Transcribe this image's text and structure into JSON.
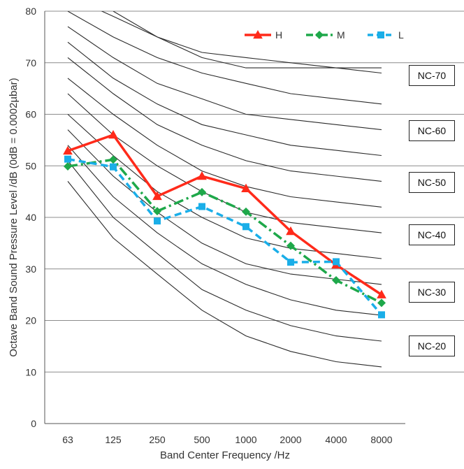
{
  "chart_data": {
    "type": "line",
    "xlabel": "Band Center Frequency /Hz",
    "ylabel": "Octave Band Sound Pressure Level /dB (0dB = 0.0002µbar)",
    "categories": [
      "63",
      "125",
      "250",
      "500",
      "1000",
      "2000",
      "4000",
      "8000"
    ],
    "ylim": [
      0,
      80
    ],
    "yticks": [
      0,
      10,
      20,
      30,
      40,
      50,
      60,
      70,
      80
    ],
    "grid": true,
    "legend_position": "top-right",
    "series": [
      {
        "name": "H",
        "color": "#ff2a1a",
        "marker": "triangle",
        "dash": "solid",
        "values": [
          52.9,
          56.0,
          44.1,
          48.0,
          45.6,
          37.3,
          30.8,
          25.0
        ]
      },
      {
        "name": "M",
        "color": "#1ea84a",
        "marker": "diamond",
        "dash": "dashdot",
        "values": [
          49.9,
          51.2,
          41.2,
          44.9,
          41.1,
          34.5,
          27.8,
          23.4
        ]
      },
      {
        "name": "L",
        "color": "#1aaee8",
        "marker": "square",
        "dash": "dashed",
        "values": [
          51.3,
          49.8,
          39.3,
          42.1,
          38.2,
          31.3,
          31.4,
          21.1
        ]
      }
    ],
    "nc_curves": [
      {
        "label": "NC-20",
        "values": [
          51,
          40,
          33,
          26,
          22,
          19,
          17,
          16
        ]
      },
      {
        "label": "",
        "values": [
          54,
          44,
          37,
          31,
          27,
          24,
          22,
          21
        ]
      },
      {
        "label": "NC-30",
        "values": [
          57,
          48,
          41,
          35,
          31,
          29,
          28,
          27
        ]
      },
      {
        "label": "",
        "values": [
          60,
          52,
          45,
          40,
          36,
          34,
          33,
          32
        ]
      },
      {
        "label": "NC-40",
        "values": [
          64,
          56,
          50,
          45,
          41,
          39,
          38,
          37
        ]
      },
      {
        "label": "",
        "values": [
          67,
          60,
          54,
          49,
          46,
          44,
          43,
          42
        ]
      },
      {
        "label": "NC-50",
        "values": [
          71,
          64,
          58,
          54,
          51,
          49,
          48,
          47
        ]
      },
      {
        "label": "",
        "values": [
          74,
          67,
          62,
          58,
          56,
          54,
          53,
          52
        ]
      },
      {
        "label": "NC-60",
        "values": [
          77,
          71,
          66,
          63,
          60,
          59,
          58,
          57
        ]
      },
      {
        "label": "",
        "values": [
          80,
          75,
          71,
          68,
          66,
          64,
          63,
          62
        ]
      },
      {
        "label": "NC-70",
        "values": [
          83,
          79,
          75,
          72,
          71,
          70,
          69,
          68
        ]
      },
      {
        "label": "",
        "values": [
          null,
          80,
          75,
          71,
          69,
          69,
          69,
          69
        ]
      }
    ],
    "extra_curves": [
      {
        "values": [
          47,
          36,
          29,
          22,
          17,
          14,
          12,
          11
        ]
      }
    ],
    "nc_labels": [
      "NC-70",
      "NC-60",
      "NC-50",
      "NC-40",
      "NC-30",
      "NC-20"
    ]
  }
}
